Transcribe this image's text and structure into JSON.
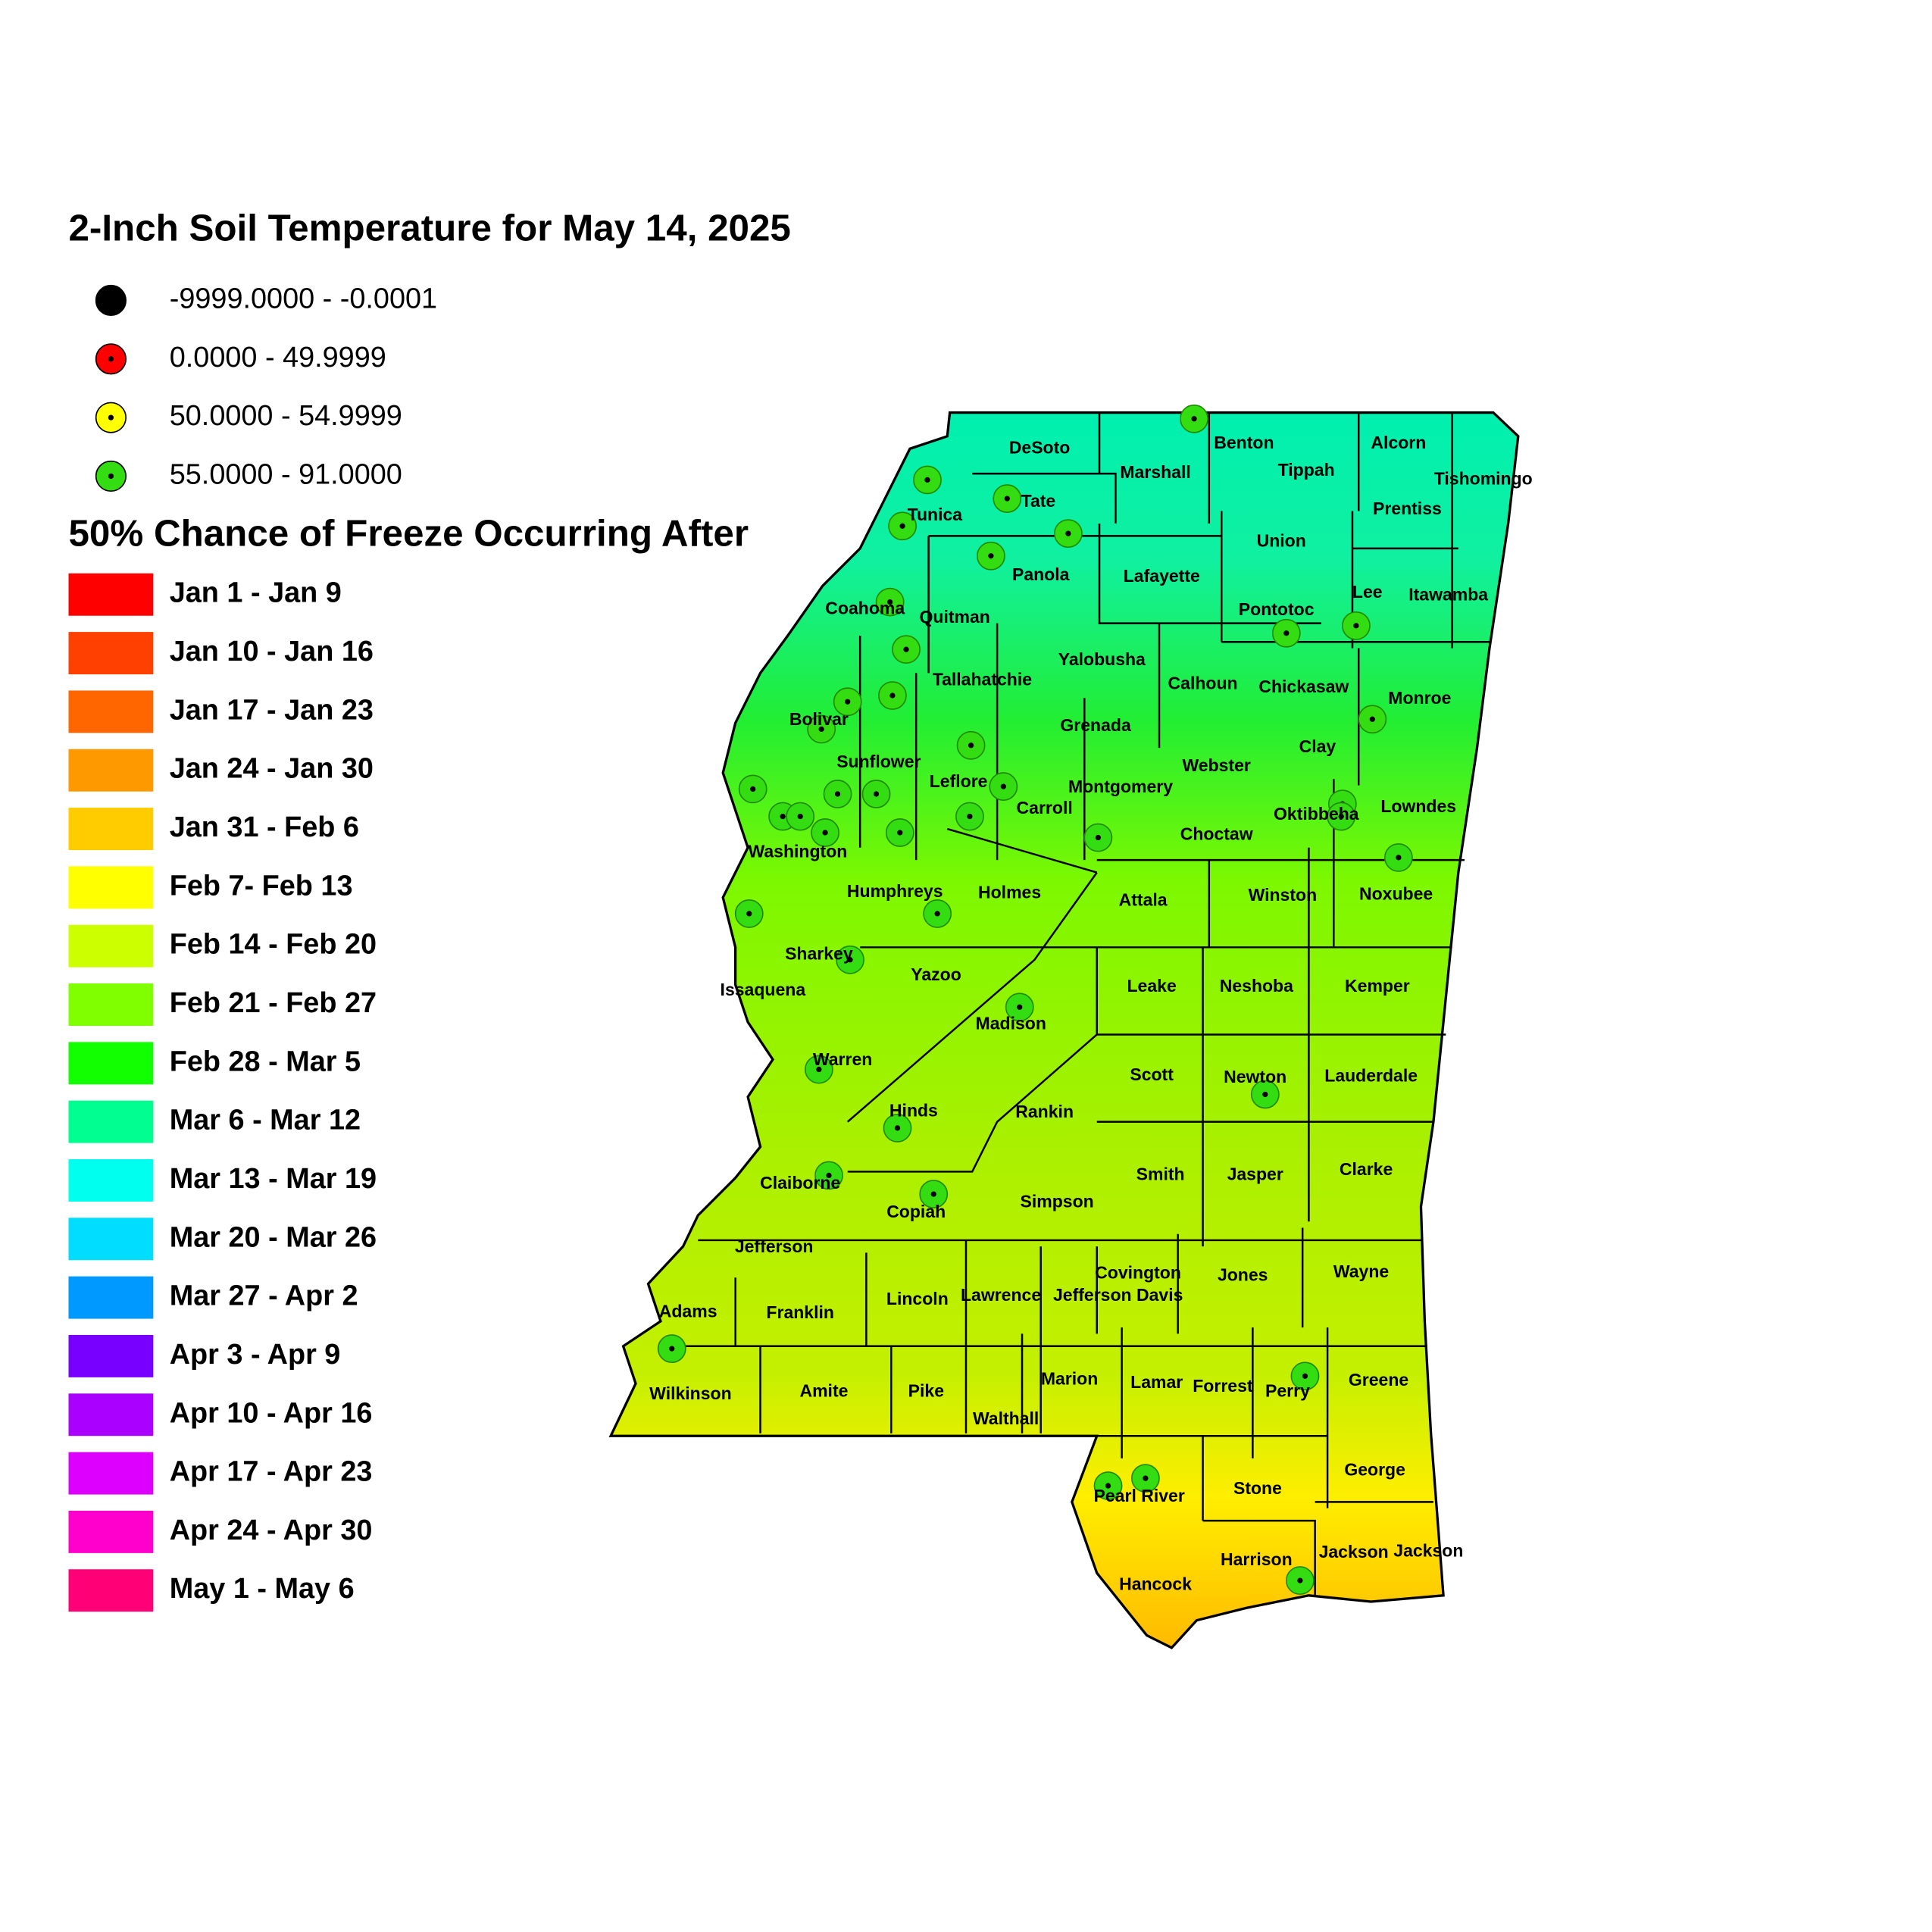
{
  "title": "2-Inch Soil Temperature for May 14, 2025",
  "soil_legend": [
    {
      "label": "-9999.0000 - -0.0001",
      "color": "#000000"
    },
    {
      "label": "0.0000 - 49.9999",
      "color": "#ff0000"
    },
    {
      "label": "50.0000 - 54.9999",
      "color": "#ffff00"
    },
    {
      "label": "55.0000 - 91.0000",
      "color": "#33dd11"
    }
  ],
  "freeze_legend_title": "50% Chance of Freeze Occurring After",
  "freeze_legend": [
    {
      "label": "Jan 1 - Jan 9",
      "color": "#ff0000"
    },
    {
      "label": "Jan 10 - Jan 16",
      "color": "#ff4000"
    },
    {
      "label": "Jan 17 - Jan 23",
      "color": "#ff6600"
    },
    {
      "label": "Jan 24 - Jan 30",
      "color": "#ff9900"
    },
    {
      "label": "Jan 31 - Feb 6",
      "color": "#ffcc00"
    },
    {
      "label": "Feb 7- Feb 13",
      "color": "#ffff00"
    },
    {
      "label": "Feb 14 - Feb 20",
      "color": "#ccff00"
    },
    {
      "label": "Feb 21 - Feb 27",
      "color": "#80ff00"
    },
    {
      "label": "Feb 28 - Mar 5",
      "color": "#11ff00"
    },
    {
      "label": "Mar 6 - Mar 12",
      "color": "#00ff90"
    },
    {
      "label": "Mar 13 - Mar 19",
      "color": "#00ffee"
    },
    {
      "label": "Mar 20 - Mar 26",
      "color": "#00ddff"
    },
    {
      "label": "Mar 27 - Apr 2",
      "color": "#0099ff"
    },
    {
      "label": "Apr 3 - Apr 9",
      "color": "#7700ff"
    },
    {
      "label": "Apr 10 - Apr 16",
      "color": "#aa00ff"
    },
    {
      "label": "Apr 17 - Apr 23",
      "color": "#dd00ff"
    },
    {
      "label": "Apr 24 - Apr 30",
      "color": "#ff00cc"
    },
    {
      "label": "May 1 - May 6",
      "color": "#ff0077"
    }
  ],
  "counties": [
    "DeSoto",
    "Marshall",
    "Benton",
    "Tippah",
    "Alcorn",
    "Tishomingo",
    "Tunica",
    "Tate",
    "Prentiss",
    "Union",
    "Panola",
    "Lafayette",
    "Coahoma",
    "Quitman",
    "Pontotoc",
    "Lee",
    "Itawamba",
    "Tallahatchie",
    "Yalobusha",
    "Calhoun",
    "Chickasaw",
    "Monroe",
    "Bolivar",
    "Grenada",
    "Sunflower",
    "Webster",
    "Clay",
    "Leflore",
    "Montgomery",
    "Carroll",
    "Washington",
    "Oktibbeha",
    "Lowndes",
    "Choctaw",
    "Humphreys",
    "Holmes",
    "Attala",
    "Winston",
    "Noxubee",
    "Sharkey",
    "Issaquena",
    "Yazoo",
    "Leake",
    "Neshoba",
    "Kemper",
    "Madison",
    "Warren",
    "Scott",
    "Newton",
    "Lauderdale",
    "Hinds",
    "Rankin",
    "Smith",
    "Jasper",
    "Clarke",
    "Claiborne",
    "Copiah",
    "Simpson",
    "Jefferson",
    "Covington",
    "Jones",
    "Wayne",
    "Adams",
    "Franklin",
    "Lincoln",
    "Lawrence",
    "Jefferson Davis",
    "Wilkinson",
    "Amite",
    "Pike",
    "Marion",
    "Lamar",
    "Forrest",
    "Perry",
    "Greene",
    "Walthall",
    "Pearl River",
    "Stone",
    "George",
    "Harrison",
    "Jackson",
    "Jackson",
    "Hancock"
  ]
}
